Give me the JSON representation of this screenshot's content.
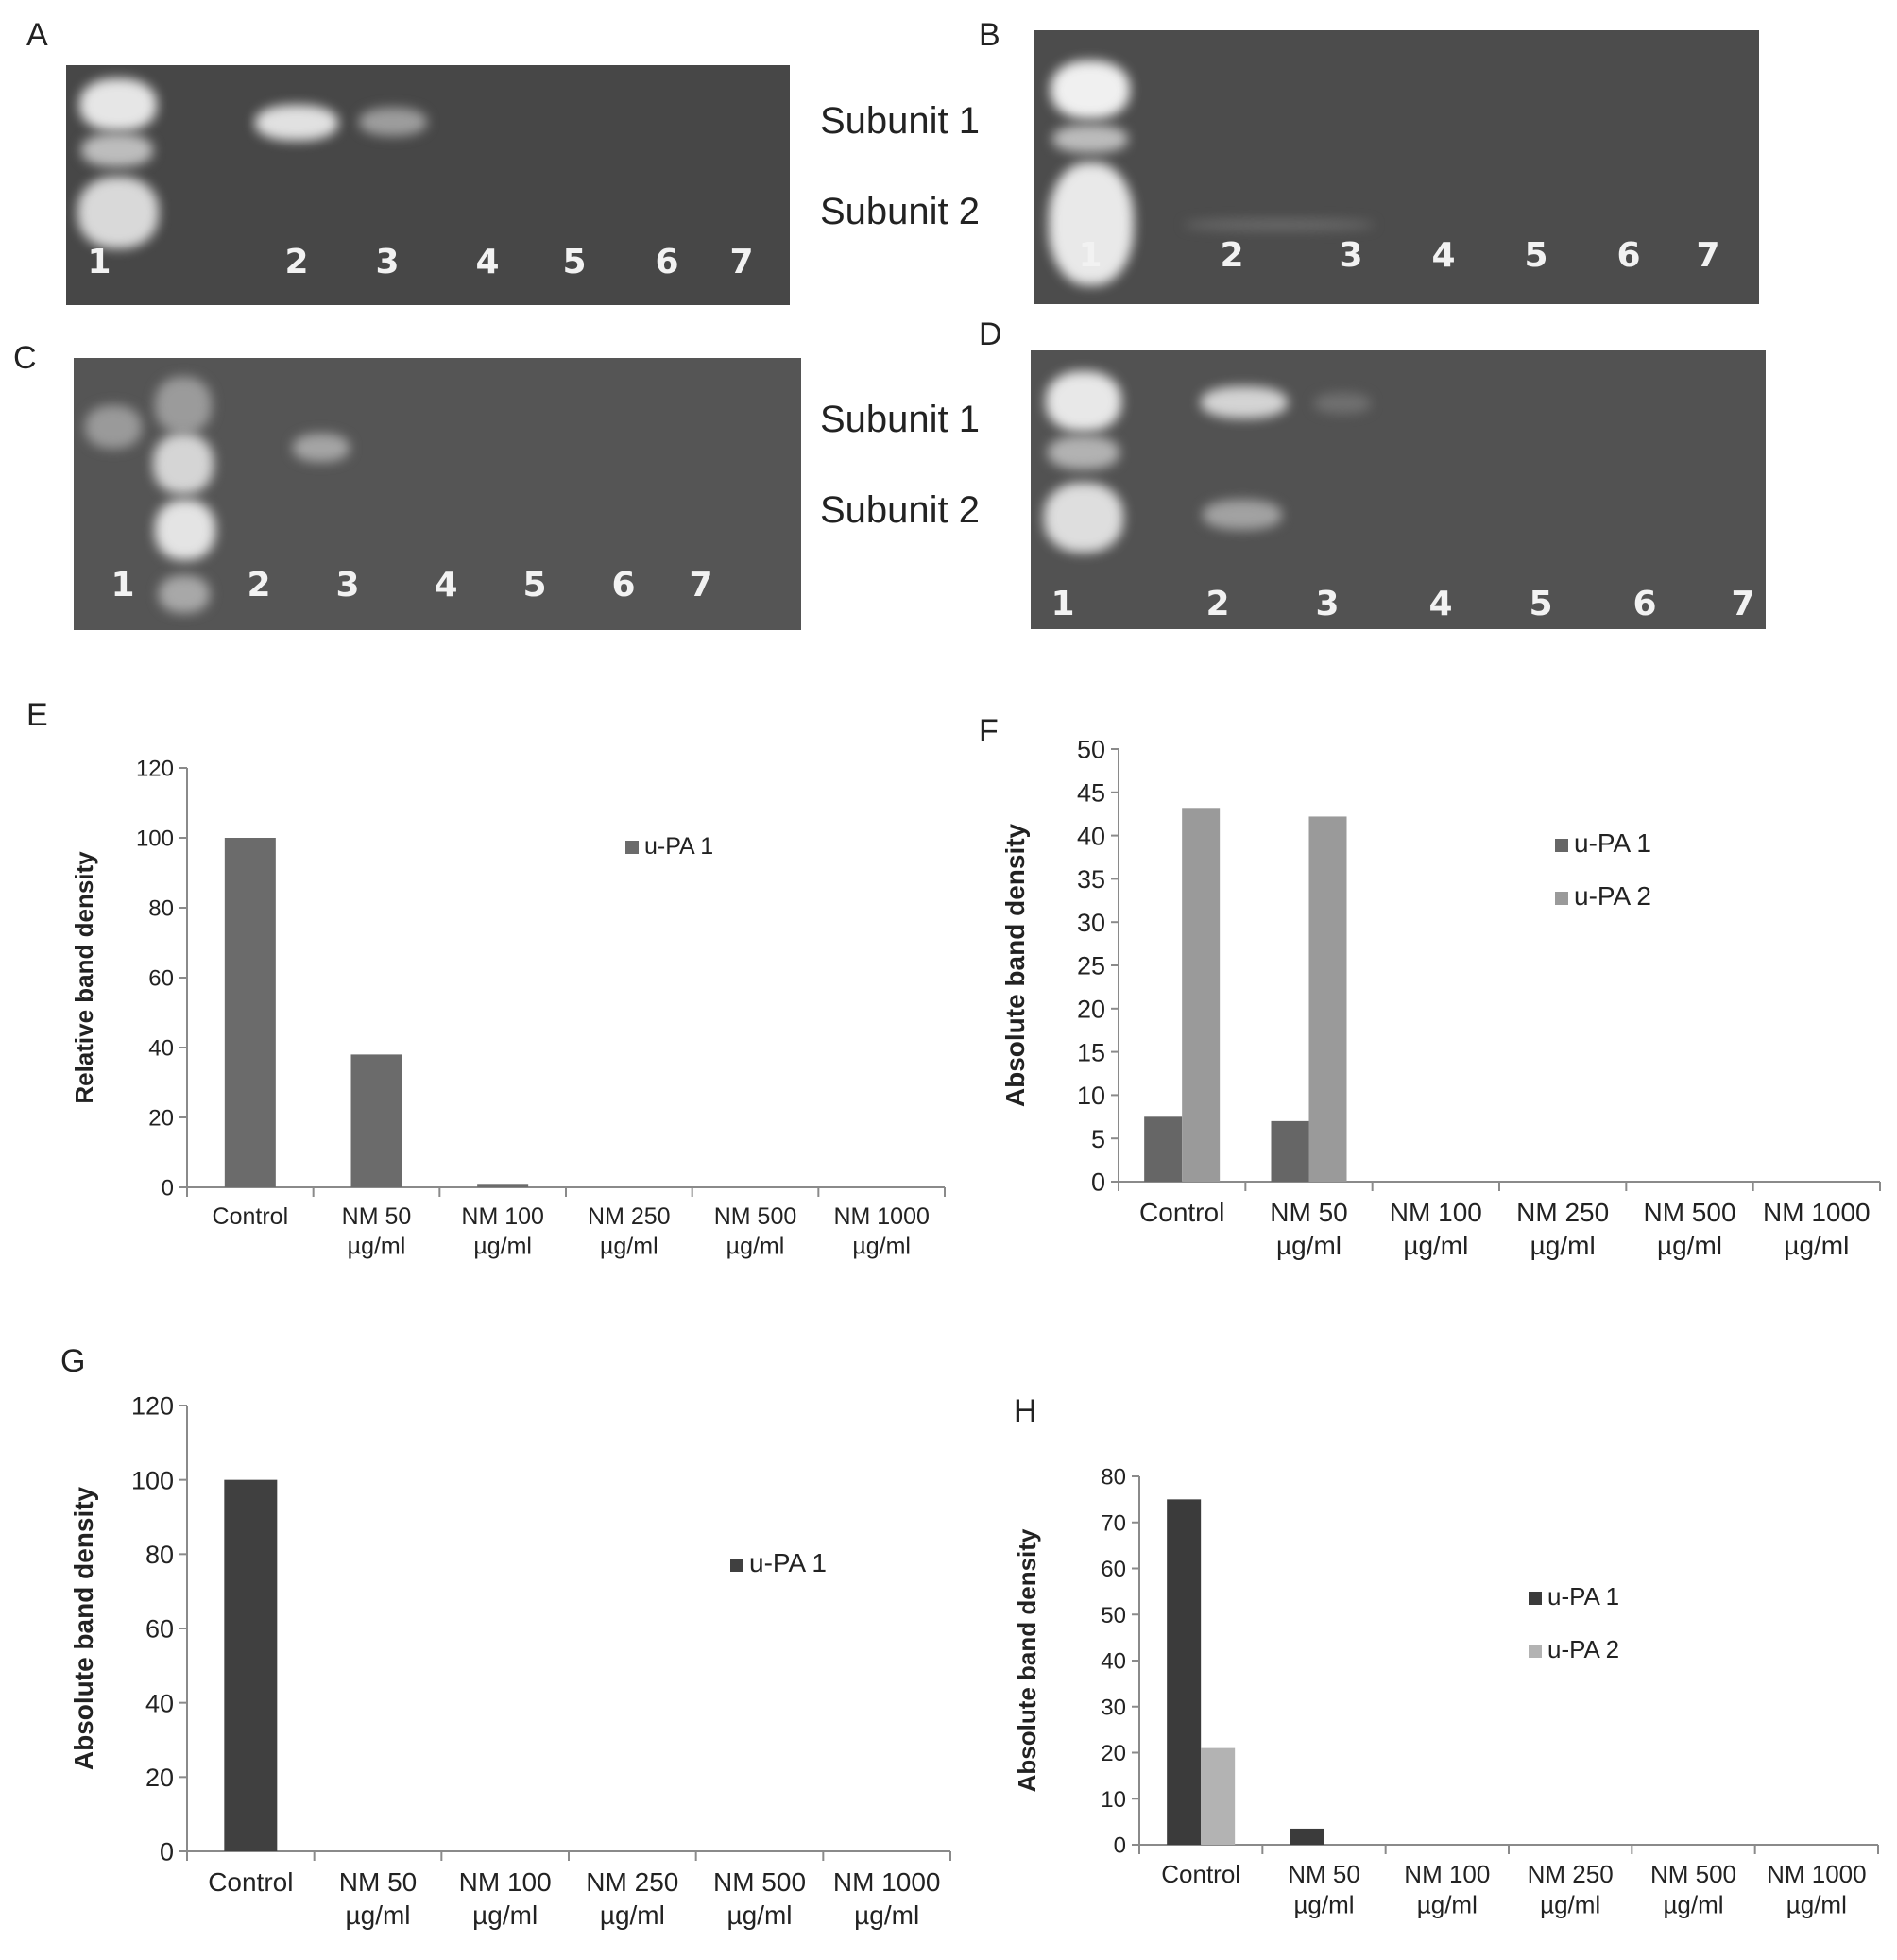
{
  "panels": {
    "A": "A",
    "B": "B",
    "C": "C",
    "D": "D",
    "E": "E",
    "F": "F",
    "G": "G",
    "H": "H"
  },
  "gels": {
    "A": {
      "lanes": [
        "1",
        "2",
        "3",
        "4",
        "5",
        "6",
        "7"
      ]
    },
    "B": {
      "lanes": [
        "1",
        "2",
        "3",
        "4",
        "5",
        "6",
        "7"
      ]
    },
    "C": {
      "lanes": [
        "1",
        "2",
        "3",
        "4",
        "5",
        "6",
        "7"
      ]
    },
    "D": {
      "lanes": [
        "1",
        "2",
        "3",
        "4",
        "5",
        "6",
        "7"
      ]
    }
  },
  "subunit_labels": {
    "top": {
      "s1": "Subunit 1",
      "s2": "Subunit 2"
    },
    "bottom": {
      "s1": "Subunit 1",
      "s2": "Subunit 2"
    }
  },
  "colors": {
    "gel_background": "#4a4a4a",
    "band": "#e8e8e8",
    "upa1_E": "#6b6b6b",
    "upa1_F": "#666666",
    "upa2_F": "#9a9a9a",
    "upa1_G": "#404040",
    "upa1_H": "#3b3b3b",
    "upa2_H": "#b3b3b3"
  },
  "chart_data": [
    {
      "panel": "E",
      "type": "bar",
      "categories": [
        "Control",
        "NM 50 µg/ml",
        "NM 100 µg/ml",
        "NM 250 µg/ml",
        "NM 500 µg/ml",
        "NM 1000 µg/ml"
      ],
      "series": [
        {
          "name": "u-PA 1",
          "values": [
            100,
            38,
            1,
            0,
            0,
            0
          ]
        }
      ],
      "xlabel": "",
      "ylabel": "Relative band density",
      "ylim": [
        0,
        120
      ],
      "yticks": [
        0,
        20,
        40,
        60,
        80,
        100,
        120
      ],
      "legend": "right"
    },
    {
      "panel": "F",
      "type": "bar",
      "categories": [
        "Control",
        "NM 50 µg/ml",
        "NM 100 µg/ml",
        "NM 250 µg/ml",
        "NM 500 µg/ml",
        "NM 1000 µg/ml"
      ],
      "series": [
        {
          "name": "u-PA 1",
          "values": [
            7.5,
            7,
            0,
            0,
            0,
            0
          ]
        },
        {
          "name": "u-PA 2",
          "values": [
            43.2,
            42.2,
            0,
            0,
            0,
            0
          ]
        }
      ],
      "xlabel": "",
      "ylabel": "Absolute band density",
      "ylim": [
        0,
        50
      ],
      "yticks": [
        0,
        5,
        10,
        15,
        20,
        25,
        30,
        35,
        40,
        45,
        50
      ],
      "legend": "right"
    },
    {
      "panel": "G",
      "type": "bar",
      "categories": [
        "Control",
        "NM 50 µg/ml",
        "NM 100 µg/ml",
        "NM 250 µg/ml",
        "NM 500 µg/ml",
        "NM 1000 µg/ml"
      ],
      "series": [
        {
          "name": "u-PA 1",
          "values": [
            100,
            0,
            0,
            0,
            0,
            0
          ]
        }
      ],
      "xlabel": "",
      "ylabel": "Absolute band density",
      "ylim": [
        0,
        120
      ],
      "yticks": [
        0,
        20,
        40,
        60,
        80,
        100,
        120
      ],
      "legend": "right"
    },
    {
      "panel": "H",
      "type": "bar",
      "categories": [
        "Control",
        "NM 50 µg/ml",
        "NM 100 µg/ml",
        "NM 250 µg/ml",
        "NM 500 µg/ml",
        "NM 1000 µg/ml"
      ],
      "series": [
        {
          "name": "u-PA 1",
          "values": [
            75,
            3.5,
            0,
            0,
            0,
            0
          ]
        },
        {
          "name": "u-PA 2",
          "values": [
            21,
            0,
            0,
            0,
            0,
            0
          ]
        }
      ],
      "xlabel": "",
      "ylabel": "Absolute band density",
      "ylim": [
        0,
        80
      ],
      "yticks": [
        0,
        10,
        20,
        30,
        40,
        50,
        60,
        70,
        80
      ],
      "legend": "right"
    }
  ]
}
